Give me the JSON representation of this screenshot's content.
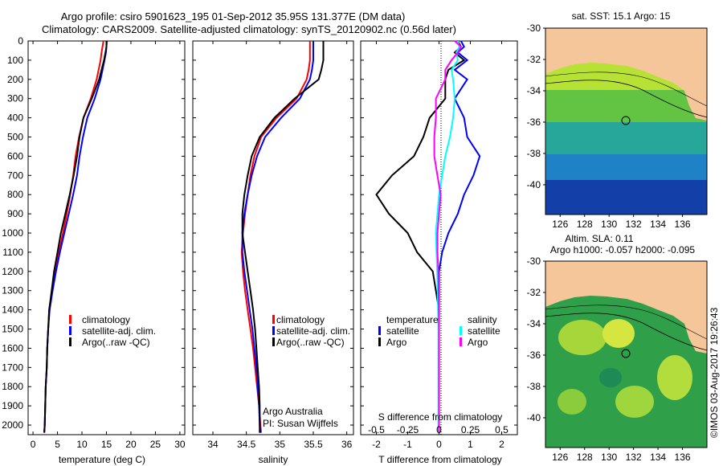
{
  "header": {
    "title_line1": "Argo profile: csiro 5901623_195 01-Sep-2012 35.95S 131.377E (DM data)",
    "title_line2": "Climatology: CARS2009. Satellite-adjusted climatology: synTS_20120902.nc (0.56d later)"
  },
  "credits": {
    "argo": "Argo Australia",
    "pi": "PI: Susan Wijffels"
  },
  "stamp": "©IMOS 03-Aug-2017 19:26:43",
  "colors": {
    "climatology": "#ff0000",
    "satellite": "#0000ff",
    "argo": "#000000",
    "sat_diff_s": "#00ffff",
    "argo_diff_s": "#ff00ff",
    "land": "#f6c69b"
  },
  "chart_data": [
    {
      "type": "line",
      "id": "temperature",
      "xlabel": "temperature (deg C)",
      "ylim": [
        2050,
        0
      ],
      "xlim": [
        -1,
        31
      ],
      "xticks": [
        0,
        5,
        10,
        15,
        20,
        25,
        30
      ],
      "yticks": [
        0,
        100,
        200,
        300,
        400,
        500,
        600,
        700,
        800,
        900,
        1000,
        1100,
        1200,
        1300,
        1400,
        1500,
        1600,
        1700,
        1800,
        1900,
        2000
      ],
      "legend": [
        "climatology",
        "satellite-adj. clim.",
        "Argo(..raw -QC)"
      ],
      "series": [
        {
          "name": "climatology",
          "color": "#ff0000",
          "x": [
            14.4,
            14.2,
            14.0,
            13.8,
            13.0,
            11.8,
            10.3,
            9.4,
            8.7,
            8.2,
            7.6,
            6.9,
            6.1,
            5.3,
            4.6,
            3.9,
            3.3,
            3.1,
            2.9,
            2.8,
            2.6,
            2.5,
            2.4,
            2.3
          ],
          "y": [
            0,
            30,
            60,
            100,
            200,
            300,
            400,
            500,
            600,
            700,
            800,
            900,
            1000,
            1100,
            1200,
            1300,
            1400,
            1500,
            1600,
            1700,
            1800,
            1900,
            2000,
            2040
          ]
        },
        {
          "name": "satellite-adj. clim.",
          "color": "#0000ff",
          "x": [
            15.1,
            15.0,
            14.9,
            14.6,
            13.8,
            12.6,
            11.1,
            10.2,
            9.5,
            9.0,
            8.2,
            7.3,
            6.4,
            5.5,
            4.7,
            4.0,
            3.4,
            3.1,
            2.9,
            2.8,
            2.6,
            2.5,
            2.4,
            2.3
          ],
          "y": [
            0,
            30,
            60,
            100,
            200,
            300,
            400,
            500,
            600,
            700,
            800,
            900,
            1000,
            1100,
            1200,
            1300,
            1400,
            1500,
            1600,
            1700,
            1800,
            1900,
            2000,
            2040
          ]
        },
        {
          "name": "Argo(..raw -QC)",
          "color": "#000000",
          "x": [
            15.0,
            15.0,
            14.8,
            14.5,
            13.5,
            12.0,
            10.3,
            9.5,
            9.0,
            8.3,
            7.5,
            6.6,
            5.7,
            5.0,
            4.3,
            3.8,
            3.3,
            3.1,
            2.9,
            2.8,
            2.6,
            2.5,
            2.4,
            2.3
          ],
          "y": [
            0,
            30,
            60,
            100,
            200,
            300,
            400,
            500,
            600,
            700,
            800,
            900,
            1000,
            1100,
            1200,
            1300,
            1400,
            1500,
            1600,
            1700,
            1800,
            1900,
            2000,
            2040
          ]
        }
      ]
    },
    {
      "type": "line",
      "id": "salinity",
      "xlabel": "salinity",
      "ylim": [
        2050,
        0
      ],
      "xlim": [
        33.7,
        36.1
      ],
      "xticks": [
        34,
        34.5,
        35,
        35.5,
        36
      ],
      "legend": [
        "climatology",
        "satellite-adj. clim.",
        "Argo(..raw -QC)"
      ],
      "series": [
        {
          "name": "climatology",
          "color": "#ff0000",
          "x": [
            35.45,
            35.45,
            35.43,
            35.4,
            35.25,
            34.95,
            34.72,
            34.62,
            34.56,
            34.52,
            34.48,
            34.45,
            34.43,
            34.45,
            34.48,
            34.52,
            34.56,
            34.6,
            34.63,
            34.66,
            34.69,
            34.71,
            34.72
          ],
          "y": [
            0,
            100,
            150,
            200,
            300,
            400,
            500,
            600,
            700,
            800,
            900,
            1000,
            1100,
            1200,
            1300,
            1400,
            1500,
            1600,
            1700,
            1800,
            1900,
            2000,
            2040
          ]
        },
        {
          "name": "satellite-adj. clim.",
          "color": "#0000ff",
          "x": [
            35.5,
            35.5,
            35.48,
            35.45,
            35.3,
            35.02,
            34.78,
            34.66,
            34.58,
            34.52,
            34.47,
            34.44,
            34.44,
            34.47,
            34.51,
            34.55,
            34.59,
            34.62,
            34.65,
            34.67,
            34.69,
            34.7,
            34.71
          ],
          "y": [
            0,
            100,
            150,
            200,
            300,
            400,
            500,
            600,
            700,
            800,
            900,
            1000,
            1100,
            1200,
            1300,
            1400,
            1500,
            1600,
            1700,
            1800,
            1900,
            2000,
            2040
          ]
        },
        {
          "name": "Argo(..raw -QC)",
          "color": "#000000",
          "x": [
            35.65,
            35.65,
            35.62,
            35.58,
            35.22,
            34.92,
            34.7,
            34.58,
            34.52,
            34.47,
            34.44,
            34.44,
            34.48,
            34.52,
            34.56,
            34.6,
            34.63,
            34.65,
            34.67,
            34.69,
            34.7,
            34.7,
            34.7
          ],
          "y": [
            0,
            100,
            150,
            200,
            300,
            400,
            500,
            600,
            700,
            800,
            900,
            1000,
            1100,
            1200,
            1300,
            1400,
            1500,
            1600,
            1700,
            1800,
            1900,
            2000,
            2040
          ]
        }
      ]
    },
    {
      "type": "line",
      "id": "difference",
      "xlabel": "T difference from climatology",
      "xlabel_top": "S difference from climatology",
      "xlim": [
        -2.5,
        2.5
      ],
      "xticks": [
        -2,
        -1,
        0,
        1,
        2
      ],
      "xticks_top": [
        "-0.5",
        "-0.25",
        "0",
        "0.25",
        "0.5"
      ],
      "ylim": [
        2050,
        0
      ],
      "legend_headers": [
        "temperature",
        "salinity"
      ],
      "legend": [
        "satellite",
        "Argo",
        "satellite",
        "Argo"
      ],
      "series": [
        {
          "name": "satellite",
          "quantity": "temperature",
          "color": "#0000ff",
          "x": [
            0.7,
            0.8,
            0.6,
            0.9,
            0.5,
            0.9,
            0.5,
            0.8,
            0.9,
            1.3,
            1.1,
            0.8,
            0.6,
            0.3,
            0.1,
            0.0,
            0.0,
            0.0,
            0.0,
            0.0,
            0.0,
            0.0,
            0.0
          ],
          "y": [
            0,
            30,
            60,
            100,
            150,
            200,
            300,
            400,
            500,
            600,
            700,
            800,
            900,
            1000,
            1100,
            1200,
            1300,
            1400,
            1500,
            1600,
            1700,
            1800,
            2040
          ]
        },
        {
          "name": "Argo",
          "quantity": "temperature",
          "color": "#000000",
          "x": [
            0.6,
            0.7,
            0.5,
            0.8,
            0.3,
            0.2,
            0.2,
            -0.3,
            -0.5,
            -0.8,
            -1.5,
            -2.0,
            -1.6,
            -1.0,
            -0.7,
            -0.2,
            -0.1,
            0.0,
            0.0,
            0.0,
            0.0
          ],
          "y": [
            0,
            30,
            60,
            100,
            150,
            200,
            300,
            400,
            500,
            600,
            700,
            800,
            900,
            1000,
            1100,
            1200,
            1300,
            1400,
            1500,
            1600,
            2040
          ]
        },
        {
          "name": "satellite",
          "quantity": "salinity",
          "color": "#00ffff",
          "x": [
            0.6,
            0.65,
            0.55,
            0.6,
            0.4,
            0.45,
            0.5,
            0.45,
            0.35,
            0.2,
            0.1,
            0.0,
            -0.05,
            -0.1,
            -0.08,
            -0.06,
            -0.04,
            -0.02,
            -0.02,
            -0.02
          ],
          "y": [
            0,
            30,
            60,
            100,
            150,
            200,
            300,
            400,
            500,
            600,
            700,
            800,
            900,
            1000,
            1100,
            1200,
            1300,
            1500,
            1800,
            2040
          ]
        },
        {
          "name": "Argo",
          "quantity": "salinity",
          "color": "#ff00ff",
          "x": [
            0.5,
            0.7,
            0.6,
            0.4,
            0.2,
            0.2,
            -0.1,
            -0.1,
            -0.15,
            -0.15,
            -0.05,
            0.05,
            0.0,
            -0.05,
            -0.05,
            -0.02,
            0.0,
            0.0
          ],
          "y": [
            0,
            30,
            60,
            100,
            150,
            200,
            300,
            400,
            500,
            600,
            700,
            800,
            900,
            1000,
            1100,
            1200,
            1500,
            2040
          ]
        }
      ]
    },
    {
      "type": "heatmap",
      "id": "sst_map",
      "title": "sat. SST: 15.1  Argo: 15",
      "xticks": [
        126,
        128,
        130,
        132,
        134,
        136
      ],
      "yticks": [
        -30,
        -32,
        -34,
        -36,
        -38,
        -40
      ],
      "profile_lon": 131.377,
      "profile_lat": -35.95
    },
    {
      "type": "heatmap",
      "id": "sla_map",
      "title_line1": "Altim. SLA: 0.11",
      "title_line2": "Argo h1000: -0.057 h2000: -0.095",
      "xticks": [
        126,
        128,
        130,
        132,
        134,
        136
      ],
      "yticks": [
        -30,
        -32,
        -34,
        -36,
        -38,
        -40
      ],
      "profile_lon": 131.377,
      "profile_lat": -35.95
    }
  ]
}
